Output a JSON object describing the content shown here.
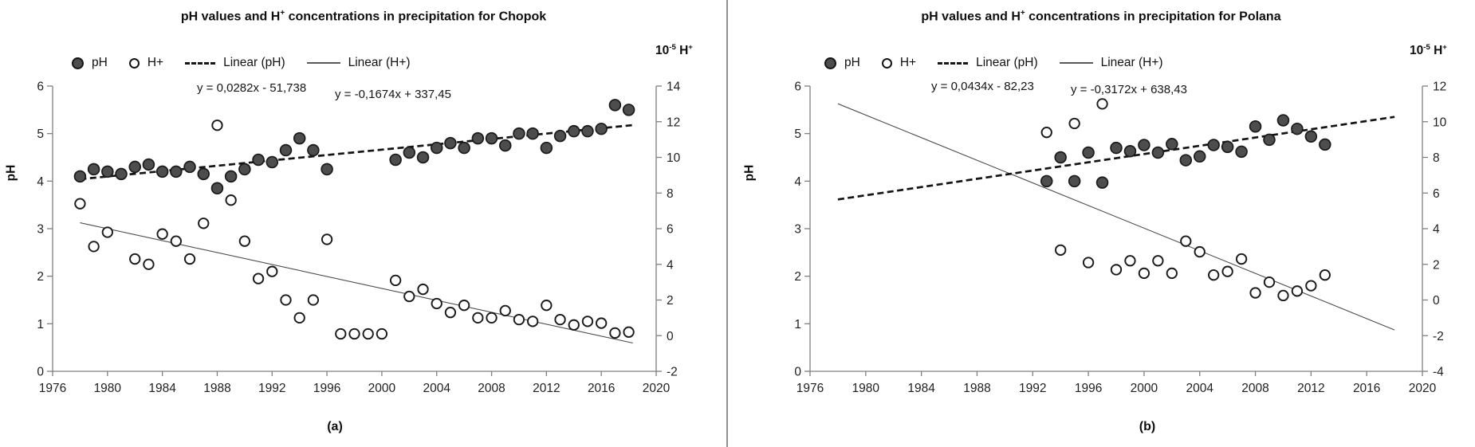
{
  "page": {
    "background": "#ffffff",
    "divider_color": "#909090",
    "text_color": "#141414",
    "axis_color": "#808080",
    "ph_dot_fill": "#4d4d4d",
    "h_dot_fill": "#ffffff",
    "dot_stroke": "#1a1a1a"
  },
  "chart_data": [
    {
      "id": "a",
      "type": "scatter",
      "title": "pH values and H+ concentrations in precipitation for Chopok",
      "title_pre": "pH values and H",
      "title_sup": "+",
      "title_post": " concentrations in precipitation for Chopok",
      "caption": "(a)",
      "ylabel_left": "pH",
      "ylabel_right": {
        "base": "10",
        "sup": "-5",
        "rest": " H",
        "sup2": "+"
      },
      "legend": [
        "pH",
        "H+",
        "Linear  (pH)",
        "Linear  (H+)"
      ],
      "equations": [
        "y = 0,0282x - 51,738",
        "y = -0,1674x + 337,45"
      ],
      "x_range": [
        1976,
        2020
      ],
      "x_ticks": [
        1976,
        1980,
        1984,
        1988,
        1992,
        1996,
        2000,
        2004,
        2008,
        2012,
        2016,
        2020
      ],
      "y_left": {
        "range": [
          0,
          6
        ],
        "ticks": [
          0,
          1,
          2,
          3,
          4,
          5,
          6
        ]
      },
      "y_right": {
        "range": [
          -2,
          14
        ],
        "ticks": [
          -2,
          0,
          2,
          4,
          6,
          8,
          10,
          12,
          14
        ]
      },
      "trend": {
        "ph": {
          "m": 0.0282,
          "b": -51.738
        },
        "h": {
          "m": -0.1674,
          "b": 337.45
        },
        "x_span": [
          1978,
          2018.3
        ]
      },
      "series": {
        "ph_points": [
          [
            1978,
            4.1
          ],
          [
            1979,
            4.25
          ],
          [
            1980,
            4.2
          ],
          [
            1981,
            4.15
          ],
          [
            1982,
            4.3
          ],
          [
            1983,
            4.35
          ],
          [
            1984,
            4.2
          ],
          [
            1985,
            4.2
          ],
          [
            1986,
            4.3
          ],
          [
            1987,
            4.15
          ],
          [
            1988,
            3.85
          ],
          [
            1989,
            4.1
          ],
          [
            1990,
            4.25
          ],
          [
            1991,
            4.45
          ],
          [
            1992,
            4.4
          ],
          [
            1993,
            4.65
          ],
          [
            1994,
            4.9
          ],
          [
            1995,
            4.65
          ],
          [
            1996,
            4.25
          ],
          [
            2001,
            4.45
          ],
          [
            2002,
            4.6
          ],
          [
            2003,
            4.5
          ],
          [
            2004,
            4.7
          ],
          [
            2005,
            4.8
          ],
          [
            2006,
            4.7
          ],
          [
            2007,
            4.9
          ],
          [
            2008,
            4.9
          ],
          [
            2009,
            4.75
          ],
          [
            2010,
            5.0
          ],
          [
            2011,
            5.0
          ],
          [
            2012,
            4.7
          ],
          [
            2013,
            4.95
          ],
          [
            2014,
            5.05
          ],
          [
            2015,
            5.05
          ],
          [
            2016,
            5.1
          ],
          [
            2017,
            5.6
          ],
          [
            2018,
            5.5
          ]
        ],
        "h_points": [
          [
            1978,
            7.4
          ],
          [
            1979,
            5.0
          ],
          [
            1980,
            5.8
          ],
          [
            1982,
            4.3
          ],
          [
            1983,
            4.0
          ],
          [
            1984,
            5.7
          ],
          [
            1985,
            5.3
          ],
          [
            1986,
            4.3
          ],
          [
            1987,
            6.3
          ],
          [
            1988,
            11.8
          ],
          [
            1989,
            7.6
          ],
          [
            1990,
            5.3
          ],
          [
            1991,
            3.2
          ],
          [
            1992,
            3.6
          ],
          [
            1993,
            2.0
          ],
          [
            1994,
            1.0
          ],
          [
            1995,
            2.0
          ],
          [
            1996,
            5.4
          ],
          [
            1997,
            0.1
          ],
          [
            1998,
            0.1
          ],
          [
            1999,
            0.1
          ],
          [
            2000,
            0.1
          ],
          [
            2001,
            3.1
          ],
          [
            2002,
            2.2
          ],
          [
            2003,
            2.6
          ],
          [
            2004,
            1.8
          ],
          [
            2005,
            1.3
          ],
          [
            2006,
            1.7
          ],
          [
            2007,
            1.0
          ],
          [
            2008,
            1.0
          ],
          [
            2009,
            1.4
          ],
          [
            2010,
            0.9
          ],
          [
            2011,
            0.8
          ],
          [
            2012,
            1.7
          ],
          [
            2013,
            0.9
          ],
          [
            2014,
            0.6
          ],
          [
            2015,
            0.8
          ],
          [
            2016,
            0.7
          ],
          [
            2017,
            0.15
          ],
          [
            2018,
            0.2
          ]
        ]
      }
    },
    {
      "id": "b",
      "type": "scatter",
      "title": "pH values and H+ concentrations in precipitation for Polana",
      "title_pre": "pH values and H",
      "title_sup": "+",
      "title_post": " concentrations in precipitation for Polana",
      "caption": "(b)",
      "ylabel_left": "pH",
      "ylabel_right": {
        "base": "10",
        "sup": "-5",
        "rest": " H",
        "sup2": "+"
      },
      "legend": [
        "pH",
        "H+",
        "Linear  (pH)",
        "Linear  (H+)"
      ],
      "equations": [
        "y = 0,0434x - 82,23",
        "y = -0,3172x + 638,43"
      ],
      "x_range": [
        1976,
        2020
      ],
      "x_ticks": [
        1976,
        1980,
        1984,
        1988,
        1992,
        1996,
        2000,
        2004,
        2008,
        2012,
        2016,
        2020
      ],
      "y_left": {
        "range": [
          0,
          6
        ],
        "ticks": [
          0,
          1,
          2,
          3,
          4,
          5,
          6
        ]
      },
      "y_right": {
        "range": [
          -4,
          12
        ],
        "ticks": [
          -4,
          -2,
          0,
          2,
          4,
          6,
          8,
          10,
          12
        ]
      },
      "trend": {
        "ph": {
          "m": 0.0434,
          "b": -82.23
        },
        "h": {
          "m": -0.3172,
          "b": 638.43
        },
        "x_span": [
          1978,
          2018
        ]
      },
      "series": {
        "ph_points": [
          [
            1993,
            4.0
          ],
          [
            1994,
            4.5
          ],
          [
            1995,
            4.0
          ],
          [
            1996,
            4.6
          ],
          [
            1997,
            3.97
          ],
          [
            1998,
            4.7
          ],
          [
            1999,
            4.63
          ],
          [
            2000,
            4.76
          ],
          [
            2001,
            4.6
          ],
          [
            2002,
            4.78
          ],
          [
            2003,
            4.44
          ],
          [
            2004,
            4.52
          ],
          [
            2005,
            4.76
          ],
          [
            2006,
            4.72
          ],
          [
            2007,
            4.62
          ],
          [
            2008,
            5.15
          ],
          [
            2009,
            4.87
          ],
          [
            2010,
            5.28
          ],
          [
            2011,
            5.1
          ],
          [
            2012,
            4.94
          ],
          [
            2013,
            4.77
          ]
        ],
        "h_points": [
          [
            1993,
            9.4
          ],
          [
            1994,
            2.8
          ],
          [
            1995,
            9.9
          ],
          [
            1996,
            2.1
          ],
          [
            1997,
            11.0
          ],
          [
            1998,
            1.7
          ],
          [
            1999,
            2.2
          ],
          [
            2000,
            1.5
          ],
          [
            2001,
            2.2
          ],
          [
            2002,
            1.5
          ],
          [
            2003,
            3.3
          ],
          [
            2004,
            2.7
          ],
          [
            2005,
            1.4
          ],
          [
            2006,
            1.6
          ],
          [
            2007,
            2.3
          ],
          [
            2008,
            0.4
          ],
          [
            2009,
            1.0
          ],
          [
            2010,
            0.25
          ],
          [
            2011,
            0.5
          ],
          [
            2012,
            0.8
          ],
          [
            2013,
            1.4
          ]
        ]
      }
    }
  ]
}
